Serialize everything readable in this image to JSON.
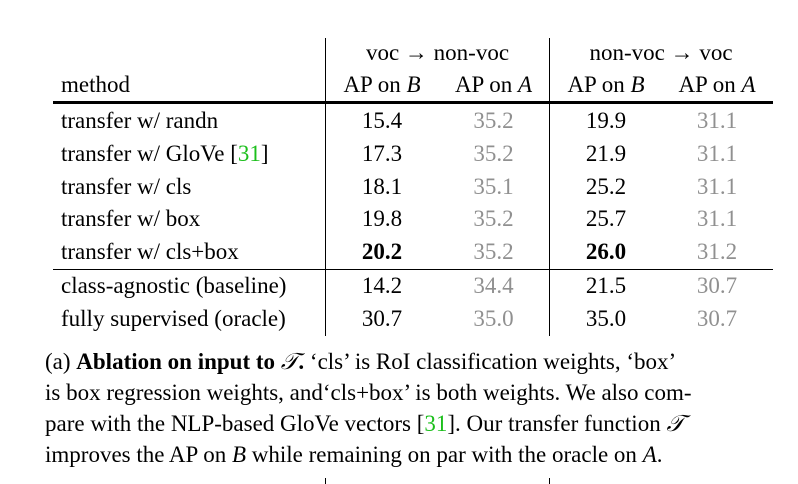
{
  "table": {
    "group_headers": [
      "voc → non-voc",
      "non-voc → voc"
    ],
    "method_header": "method",
    "col_headers": [
      {
        "prefix": "AP on ",
        "var": "B"
      },
      {
        "prefix": "AP on ",
        "var": "A"
      },
      {
        "prefix": "AP on ",
        "var": "B"
      },
      {
        "prefix": "AP on ",
        "var": "A"
      }
    ],
    "rows": [
      {
        "method": "transfer w/ randn",
        "values": [
          "15.4",
          "35.2",
          "19.9",
          "31.1"
        ]
      },
      {
        "method": "transfer w/ GloVe [",
        "cite": "31",
        "method_tail": "]",
        "values": [
          "17.3",
          "35.2",
          "21.9",
          "31.1"
        ]
      },
      {
        "method": "transfer w/ cls",
        "values": [
          "18.1",
          "35.1",
          "25.2",
          "31.1"
        ]
      },
      {
        "method": "transfer w/ box",
        "values": [
          "19.8",
          "35.2",
          "25.7",
          "31.1"
        ]
      },
      {
        "method": "transfer w/ cls+box",
        "values": [
          "20.2",
          "35.2",
          "26.0",
          "31.2"
        ]
      },
      {
        "method": "class-agnostic (baseline)",
        "values": [
          "14.2",
          "34.4",
          "21.5",
          "30.7"
        ]
      },
      {
        "method": "fully supervised (oracle)",
        "values": [
          "30.7",
          "35.0",
          "35.0",
          "30.7"
        ]
      }
    ]
  },
  "caption": {
    "label": "(a) ",
    "bold_title": "Ablation on input to ",
    "title_symbol": "𝒯",
    "title_end": ".",
    "line1_rest": " ‘cls’ is RoI classification weights, ‘box’",
    "line2": "is box regression weights, and‘cls+box’ is both weights. We also com-",
    "line3_a": "pare with the NLP-based GloVe vectors [",
    "line3_cite": "31",
    "line3_b": "]. Our transfer function ",
    "line3_symbol": "𝒯",
    "line4_a": "improves the AP on ",
    "line4_var1": "B",
    "line4_b": " while remaining on par with the oracle on ",
    "line4_var2": "A",
    "line4_c": "."
  },
  "colors": {
    "cite": "#1cbf1c",
    "secondary_value": "#909090"
  }
}
